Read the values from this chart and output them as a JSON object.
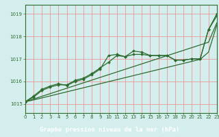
{
  "x": [
    0,
    1,
    2,
    3,
    4,
    5,
    6,
    7,
    8,
    9,
    10,
    11,
    12,
    13,
    14,
    15,
    16,
    17,
    18,
    19,
    20,
    21,
    22,
    23
  ],
  "line_wavy1": [
    1015.1,
    1015.3,
    1015.6,
    1015.75,
    1015.85,
    1015.85,
    1016.05,
    1016.15,
    1016.35,
    1016.6,
    1016.85,
    1017.15,
    1017.1,
    1017.35,
    1017.3,
    1017.15,
    1017.15,
    1017.15,
    1016.95,
    1016.95,
    1017.0,
    1017.0,
    1018.3,
    1019.0
  ],
  "line_wavy2": [
    1015.1,
    1015.35,
    1015.65,
    1015.8,
    1015.9,
    1015.82,
    1016.0,
    1016.1,
    1016.3,
    1016.55,
    1017.15,
    1017.2,
    1017.1,
    1017.2,
    1017.2,
    1017.15,
    1017.15,
    1017.15,
    1016.95,
    1016.95,
    1017.0,
    1017.0,
    1018.3,
    1018.9
  ],
  "line_straight1": [
    1015.1,
    1015.18,
    1015.27,
    1015.36,
    1015.45,
    1015.54,
    1015.63,
    1015.72,
    1015.81,
    1015.9,
    1015.99,
    1016.08,
    1016.17,
    1016.26,
    1016.35,
    1016.44,
    1016.53,
    1016.62,
    1016.71,
    1016.8,
    1016.89,
    1016.98,
    1017.3,
    1018.5
  ],
  "line_straight2": [
    1015.1,
    1015.22,
    1015.34,
    1015.46,
    1015.58,
    1015.7,
    1015.82,
    1015.94,
    1016.06,
    1016.18,
    1016.3,
    1016.42,
    1016.54,
    1016.66,
    1016.78,
    1016.9,
    1017.02,
    1017.14,
    1017.26,
    1017.38,
    1017.5,
    1017.62,
    1017.74,
    1018.6
  ],
  "line_color": "#2d6a2d",
  "bg_color": "#d4eeee",
  "label_bg_color": "#2d6a2d",
  "label_text_color": "#ffffff",
  "grid_color": "#ee8888",
  "xlabel": "Graphe pression niveau de la mer (hPa)",
  "ylim": [
    1014.6,
    1019.4
  ],
  "xlim": [
    0,
    23
  ],
  "yticks": [
    1015,
    1016,
    1017,
    1018,
    1019
  ],
  "xticks": [
    0,
    1,
    2,
    3,
    4,
    5,
    6,
    7,
    8,
    9,
    10,
    11,
    12,
    13,
    14,
    15,
    16,
    17,
    18,
    19,
    20,
    21,
    22,
    23
  ]
}
